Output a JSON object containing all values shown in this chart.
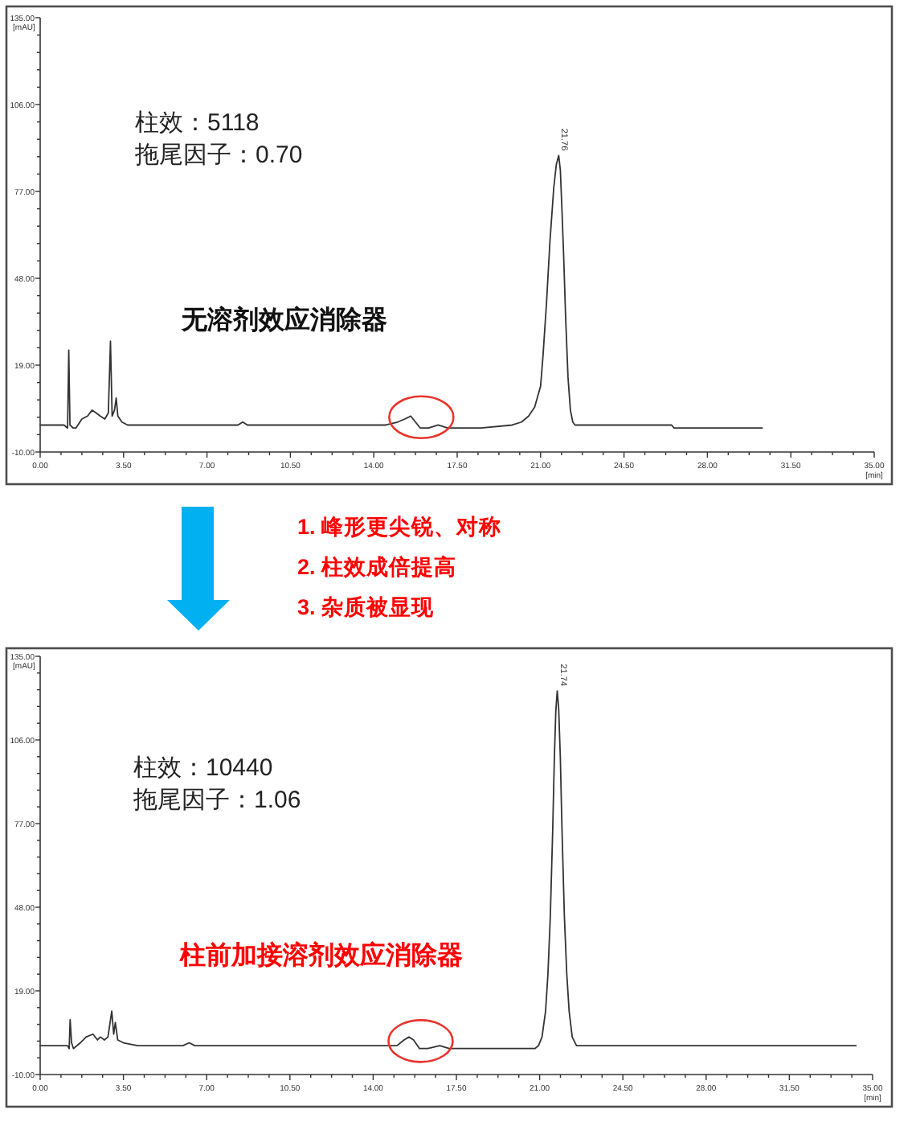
{
  "chart_data": [
    {
      "type": "line",
      "xlabel": "[min]",
      "ylabel": "[mAU]",
      "xlim": [
        0,
        35
      ],
      "ylim": [
        -10,
        135
      ],
      "xticks": [
        {
          "value": 0,
          "label": "0.00"
        },
        {
          "value": 0.875,
          "label": null
        },
        {
          "value": 1.75,
          "label": null
        },
        {
          "value": 2.625,
          "label": null
        },
        {
          "value": 3.5,
          "label": "3.50"
        },
        {
          "value": 4.375,
          "label": null
        },
        {
          "value": 5.25,
          "label": null
        },
        {
          "value": 6.125,
          "label": null
        },
        {
          "value": 7,
          "label": "7.00"
        },
        {
          "value": 7.875,
          "label": null
        },
        {
          "value": 8.75,
          "label": null
        },
        {
          "value": 9.625,
          "label": null
        },
        {
          "value": 10.5,
          "label": "10.50"
        },
        {
          "value": 11.375,
          "label": null
        },
        {
          "value": 12.25,
          "label": null
        },
        {
          "value": 13.125,
          "label": null
        },
        {
          "value": 14,
          "label": "14.00"
        },
        {
          "value": 14.875,
          "label": null
        },
        {
          "value": 15.75,
          "label": null
        },
        {
          "value": 16.625,
          "label": null
        },
        {
          "value": 17.5,
          "label": "17.50"
        },
        {
          "value": 18.375,
          "label": null
        },
        {
          "value": 19.25,
          "label": null
        },
        {
          "value": 20.125,
          "label": null
        },
        {
          "value": 21,
          "label": "21.00"
        },
        {
          "value": 21.875,
          "label": null
        },
        {
          "value": 22.75,
          "label": null
        },
        {
          "value": 23.625,
          "label": null
        },
        {
          "value": 24.5,
          "label": "24.50"
        },
        {
          "value": 25.375,
          "label": null
        },
        {
          "value": 26.25,
          "label": null
        },
        {
          "value": 27.125,
          "label": null
        },
        {
          "value": 28,
          "label": "28.00"
        },
        {
          "value": 28.875,
          "label": null
        },
        {
          "value": 29.75,
          "label": null
        },
        {
          "value": 30.625,
          "label": null
        },
        {
          "value": 31.5,
          "label": "31.50"
        },
        {
          "value": 32.375,
          "label": null
        },
        {
          "value": 33.25,
          "label": null
        },
        {
          "value": 34.125,
          "label": null
        },
        {
          "value": 35,
          "label": "35.00"
        }
      ],
      "yticks": [
        {
          "value": -10,
          "label": "-10.00"
        },
        {
          "value": -4.2,
          "label": null
        },
        {
          "value": 1.6,
          "label": null
        },
        {
          "value": 7.4,
          "label": null
        },
        {
          "value": 13.2,
          "label": null
        },
        {
          "value": 19,
          "label": "19.00"
        },
        {
          "value": 24.8,
          "label": null
        },
        {
          "value": 30.6,
          "label": null
        },
        {
          "value": 36.4,
          "label": null
        },
        {
          "value": 42.2,
          "label": null
        },
        {
          "value": 48,
          "label": "48.00"
        },
        {
          "value": 53.8,
          "label": null
        },
        {
          "value": 59.6,
          "label": null
        },
        {
          "value": 65.4,
          "label": null
        },
        {
          "value": 71.2,
          "label": null
        },
        {
          "value": 77,
          "label": "77.00"
        },
        {
          "value": 82.8,
          "label": null
        },
        {
          "value": 88.6,
          "label": null
        },
        {
          "value": 94.4,
          "label": null
        },
        {
          "value": 100.2,
          "label": null
        },
        {
          "value": 106,
          "label": "106.00"
        },
        {
          "value": 111.8,
          "label": null
        },
        {
          "value": 117.6,
          "label": null
        },
        {
          "value": 123.4,
          "label": null
        },
        {
          "value": 129.2,
          "label": null
        },
        {
          "value": 135,
          "label": "135.00"
        }
      ],
      "series": [
        {
          "color": "#333333",
          "x": [
            0,
            1.0,
            1.15,
            1.2,
            1.25,
            1.39,
            1.5,
            1.75,
            1.99,
            2.18,
            2.35,
            2.52,
            2.71,
            2.86,
            2.95,
            3.02,
            3.12,
            3.19,
            3.26,
            3.43,
            3.67,
            6.5,
            8.3,
            8.5,
            8.7,
            11.0,
            13.5,
            14.5,
            15.0,
            15.3,
            15.55,
            15.75,
            15.95,
            16.3,
            16.7,
            17.1,
            18.5,
            19.8,
            20.2,
            20.5,
            20.75,
            21.0,
            21.1,
            21.25,
            21.39,
            21.55,
            21.66,
            21.76,
            21.83,
            21.9,
            21.97,
            22.05,
            22.15,
            22.25,
            22.35,
            22.45,
            23.0,
            26.5,
            26.6,
            30.3
          ],
          "values": [
            -1,
            -1,
            -2,
            24,
            -1,
            -2,
            -2,
            1,
            2,
            4,
            3,
            2,
            1,
            3,
            27,
            2,
            4,
            8,
            2,
            0,
            -1,
            -1,
            -1,
            0,
            -1,
            -1,
            -1,
            -1,
            0,
            1,
            2,
            0,
            -2,
            -2,
            -1,
            -2,
            -2,
            -1,
            0,
            2,
            5,
            12,
            22,
            40,
            60,
            78,
            86,
            89,
            84,
            70,
            55,
            35,
            15,
            4,
            0,
            -1,
            -1,
            -1,
            -2,
            -2
          ]
        }
      ],
      "annotations": [
        "柱效：5118",
        "拖尾因子：0.70",
        "无溶剂效应消除器",
        {
          "text": "21.76",
          "x": 21.76,
          "y": 89
        }
      ]
    },
    {
      "type": "other",
      "annotations": [
        "1. 峰形更尖锐、对称",
        "2. 柱效成倍提高",
        "3. 杂质被显现"
      ]
    },
    {
      "type": "line",
      "xlabel": "[min]",
      "ylabel": "[mAU]",
      "xlim": [
        0,
        35
      ],
      "ylim": [
        -10,
        135
      ],
      "xticks": [
        {
          "value": 0,
          "label": "0.00"
        },
        {
          "value": 0.875,
          "label": null
        },
        {
          "value": 1.75,
          "label": null
        },
        {
          "value": 2.625,
          "label": null
        },
        {
          "value": 3.5,
          "label": "3.50"
        },
        {
          "value": 4.375,
          "label": null
        },
        {
          "value": 5.25,
          "label": null
        },
        {
          "value": 6.125,
          "label": null
        },
        {
          "value": 7,
          "label": "7.00"
        },
        {
          "value": 7.875,
          "label": null
        },
        {
          "value": 8.75,
          "label": null
        },
        {
          "value": 9.625,
          "label": null
        },
        {
          "value": 10.5,
          "label": "10.50"
        },
        {
          "value": 11.375,
          "label": null
        },
        {
          "value": 12.25,
          "label": null
        },
        {
          "value": 13.125,
          "label": null
        },
        {
          "value": 14,
          "label": "14.00"
        },
        {
          "value": 14.875,
          "label": null
        },
        {
          "value": 15.75,
          "label": null
        },
        {
          "value": 16.625,
          "label": null
        },
        {
          "value": 17.5,
          "label": "17.50"
        },
        {
          "value": 18.375,
          "label": null
        },
        {
          "value": 19.25,
          "label": null
        },
        {
          "value": 20.125,
          "label": null
        },
        {
          "value": 21,
          "label": "21.00"
        },
        {
          "value": 21.875,
          "label": null
        },
        {
          "value": 22.75,
          "label": null
        },
        {
          "value": 23.625,
          "label": null
        },
        {
          "value": 24.5,
          "label": "24.50"
        },
        {
          "value": 25.375,
          "label": null
        },
        {
          "value": 26.25,
          "label": null
        },
        {
          "value": 27.125,
          "label": null
        },
        {
          "value": 28,
          "label": "28.00"
        },
        {
          "value": 28.875,
          "label": null
        },
        {
          "value": 29.75,
          "label": null
        },
        {
          "value": 30.625,
          "label": null
        },
        {
          "value": 31.5,
          "label": "31.50"
        },
        {
          "value": 32.375,
          "label": null
        },
        {
          "value": 33.25,
          "label": null
        },
        {
          "value": 34.125,
          "label": null
        },
        {
          "value": 35,
          "label": "35.00"
        }
      ],
      "yticks": [
        {
          "value": -10,
          "label": "-10.00"
        },
        {
          "value": -4.2,
          "label": null
        },
        {
          "value": 1.6,
          "label": null
        },
        {
          "value": 7.4,
          "label": null
        },
        {
          "value": 13.2,
          "label": null
        },
        {
          "value": 19,
          "label": "19.00"
        },
        {
          "value": 24.8,
          "label": null
        },
        {
          "value": 30.6,
          "label": null
        },
        {
          "value": 36.4,
          "label": null
        },
        {
          "value": 42.2,
          "label": null
        },
        {
          "value": 48,
          "label": "48.00"
        },
        {
          "value": 53.8,
          "label": null
        },
        {
          "value": 59.6,
          "label": null
        },
        {
          "value": 65.4,
          "label": null
        },
        {
          "value": 71.2,
          "label": null
        },
        {
          "value": 77,
          "label": "77.00"
        },
        {
          "value": 82.8,
          "label": null
        },
        {
          "value": 88.6,
          "label": null
        },
        {
          "value": 94.4,
          "label": null
        },
        {
          "value": 100.2,
          "label": null
        },
        {
          "value": 106,
          "label": "106.00"
        },
        {
          "value": 111.8,
          "label": null
        },
        {
          "value": 117.6,
          "label": null
        },
        {
          "value": 123.4,
          "label": null
        },
        {
          "value": 129.2,
          "label": null
        },
        {
          "value": 135,
          "label": "135.00"
        }
      ],
      "series": [
        {
          "color": "#333333",
          "x": [
            0,
            1.15,
            1.22,
            1.26,
            1.32,
            1.4,
            1.69,
            1.93,
            2.22,
            2.41,
            2.53,
            2.7,
            2.85,
            3.01,
            3.09,
            3.16,
            3.26,
            3.5,
            4.1,
            6.0,
            6.27,
            6.5,
            10.5,
            14.7,
            15.0,
            15.3,
            15.5,
            15.7,
            15.95,
            16.3,
            16.8,
            17.2,
            20.8,
            20.95,
            21.1,
            21.25,
            21.35,
            21.45,
            21.55,
            21.62,
            21.68,
            21.74,
            21.8,
            21.87,
            21.94,
            22.04,
            22.14,
            22.24,
            22.37,
            22.55,
            22.7,
            34.3
          ],
          "values": [
            0,
            0,
            -1,
            9,
            1,
            -1,
            1,
            3,
            4,
            2,
            3,
            2,
            3,
            12,
            4,
            8,
            2,
            1,
            0,
            0,
            1,
            0,
            0,
            0,
            0,
            2,
            3,
            2,
            -1,
            -1,
            0,
            -1,
            -1,
            0,
            3,
            12,
            25,
            45,
            75,
            100,
            116,
            123,
            117,
            100,
            75,
            45,
            25,
            12,
            3,
            0,
            0,
            0
          ]
        }
      ],
      "annotations": [
        "柱效：10440",
        "拖尾因子：1.06",
        "柱前加接溶剂效应消除器",
        {
          "text": "21.74",
          "x": 21.74,
          "y": 123
        }
      ]
    }
  ]
}
